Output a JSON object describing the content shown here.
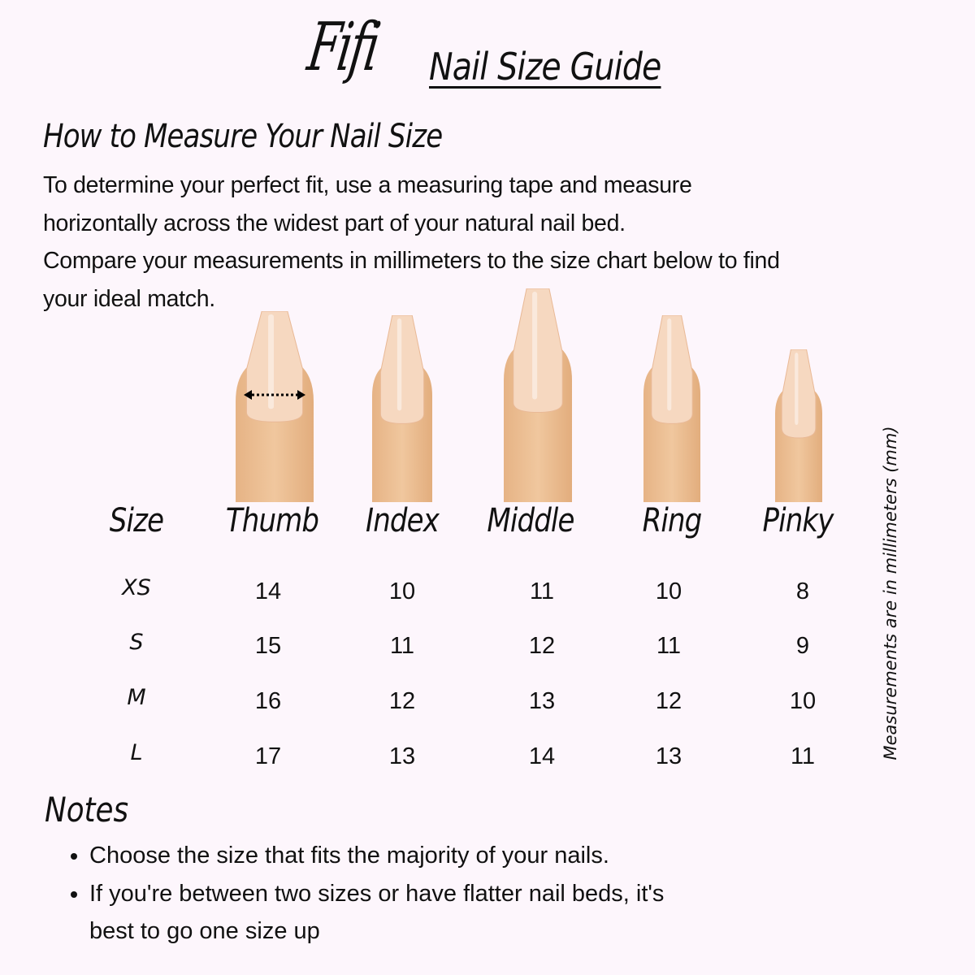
{
  "header": {
    "brand": "Fifi",
    "title": "Nail Size Guide"
  },
  "howto": {
    "heading": "How to Measure Your Nail Size",
    "lines": [
      "To determine your perfect fit, use a measuring tape and measure",
      "horizontally across the widest part of your natural nail bed.",
      "Compare your measurements in millimeters to the size chart below to find",
      "your ideal match."
    ]
  },
  "colors": {
    "background": "#fdf6fc",
    "skin": "#f0c79e",
    "nail": "#f6d8c0"
  },
  "icons": {
    "measure": "double-arrow-dotted-icon"
  },
  "table": {
    "size_header": "Size",
    "fingers": [
      "Thumb",
      "Index",
      "Middle",
      "Ring",
      "Pinky"
    ],
    "rows": [
      {
        "size": "XS",
        "values": [
          "14",
          "10",
          "11",
          "10",
          "8"
        ]
      },
      {
        "size": "S",
        "values": [
          "15",
          "11",
          "12",
          "11",
          "9"
        ]
      },
      {
        "size": "M",
        "values": [
          "16",
          "12",
          "13",
          "12",
          "10"
        ]
      },
      {
        "size": "L",
        "values": [
          "17",
          "13",
          "14",
          "13",
          "11"
        ]
      }
    ],
    "unit_note": "Measurements are in millimeters (mm)"
  },
  "notes": {
    "heading": "Notes",
    "items": [
      "Choose the size that fits the majority of your nails.",
      "If you're between two sizes or have flatter nail beds, it's best to go one size up"
    ]
  }
}
